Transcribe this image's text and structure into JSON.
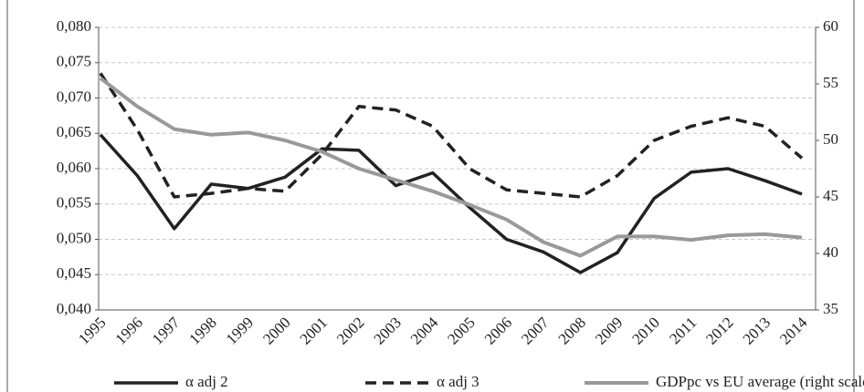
{
  "chart_data": {
    "type": "line",
    "categories": [
      "1995",
      "1996",
      "1997",
      "1998",
      "1999",
      "2000",
      "2001",
      "2002",
      "2003",
      "2004",
      "2005",
      "2006",
      "2007",
      "2008",
      "2009",
      "2010",
      "2011",
      "2012",
      "2013",
      "2014"
    ],
    "series": [
      {
        "name": "α adj 2",
        "color": "#222222",
        "dash": false,
        "values": [
          0.0648,
          0.059,
          0.0515,
          0.0578,
          0.0572,
          0.0588,
          0.0628,
          0.0626,
          0.0576,
          0.0594,
          0.0545,
          0.05,
          0.0482,
          0.0453,
          0.0481,
          0.0558,
          0.0595,
          0.06,
          0.0583,
          0.0564
        ]
      },
      {
        "name": "α adj 3",
        "color": "#222222",
        "dash": true,
        "values": [
          0.0735,
          0.0655,
          0.056,
          0.0565,
          0.0572,
          0.0568,
          0.062,
          0.0688,
          0.0683,
          0.066,
          0.06,
          0.057,
          0.0565,
          0.056,
          0.059,
          0.064,
          0.066,
          0.0672,
          0.066,
          0.0615
        ]
      },
      {
        "name": "GDPpc vs EU average (right scale)",
        "color": "#999999",
        "dash": false,
        "axis": "y2",
        "values": [
          55.5,
          53,
          51,
          50.5,
          50.7,
          50,
          49,
          47.5,
          46.5,
          45.5,
          44.3,
          43,
          41,
          39.8,
          41.5,
          41.5,
          41.2,
          41.6,
          41.7,
          41.4
        ]
      }
    ],
    "ylim": [
      0.04,
      0.08
    ],
    "yticks": [
      {
        "value": 0.04,
        "label": "0,040"
      },
      {
        "value": 0.045,
        "label": "0,045"
      },
      {
        "value": 0.05,
        "label": "0,050"
      },
      {
        "value": 0.055,
        "label": "0,055"
      },
      {
        "value": 0.06,
        "label": "0,060"
      },
      {
        "value": 0.065,
        "label": "0,065"
      },
      {
        "value": 0.07,
        "label": "0,070"
      },
      {
        "value": 0.075,
        "label": "0,075"
      },
      {
        "value": 0.08,
        "label": "0,080"
      }
    ],
    "y2lim": [
      35,
      60
    ],
    "y2ticks": [
      35,
      40,
      45,
      50,
      55,
      60
    ],
    "grid": true,
    "legend": "bottom"
  }
}
